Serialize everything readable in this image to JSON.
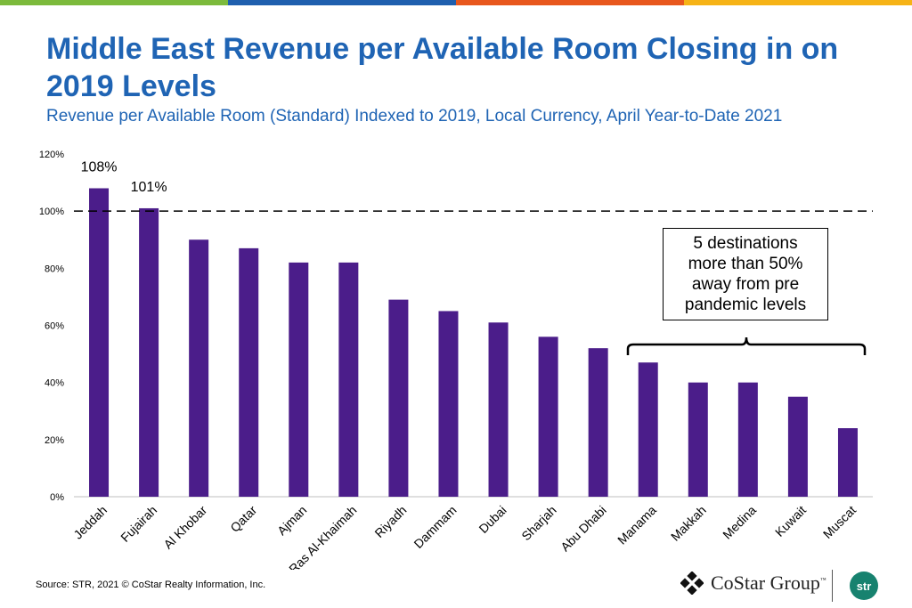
{
  "header": {
    "title": "Middle East Revenue per Available Room Closing in on 2019 Levels",
    "subtitle": "Revenue per Available Room (Standard) Indexed to 2019, Local Currency, April Year-to-Date 2021",
    "band_colors": [
      "#7cba3c",
      "#1f5fae",
      "#e8571d",
      "#f6b316"
    ]
  },
  "chart_data": {
    "type": "bar",
    "title": "Middle East Revenue per Available Room Closing in on 2019 Levels",
    "subtitle": "Revenue per Available Room (Standard) Indexed to 2019, Local Currency, April Year-to-Date 2021",
    "categories": [
      "Jeddah",
      "Fujairah",
      "Al Khobar",
      "Qatar",
      "Ajman",
      "Ras Al-Khaimah",
      "Riyadh",
      "Dammam",
      "Dubai",
      "Sharjah",
      "Abu Dhabi",
      "Manama",
      "Makkah",
      "Medina",
      "Kuwait",
      "Muscat"
    ],
    "values": [
      108,
      101,
      90,
      87,
      82,
      82,
      69,
      65,
      61,
      56,
      52,
      47,
      40,
      40,
      35,
      24
    ],
    "unit": "%",
    "data_labels": {
      "Jeddah": "108%",
      "Fujairah": "101%"
    },
    "yticks": [
      "0%",
      "20%",
      "40%",
      "60%",
      "80%",
      "100%",
      "120%"
    ],
    "ylim": [
      0,
      120
    ],
    "reference_line": 100,
    "bar_color": "#4b1d8a",
    "grid": false,
    "annotation": "5 destinations more than 50% away from pre pandemic levels"
  },
  "footer": {
    "source": "Source: STR, 2021 © CoStar Realty Information, Inc.",
    "logo_text": "CoStar Group",
    "logo_tm": "™",
    "badge_text": "str"
  }
}
